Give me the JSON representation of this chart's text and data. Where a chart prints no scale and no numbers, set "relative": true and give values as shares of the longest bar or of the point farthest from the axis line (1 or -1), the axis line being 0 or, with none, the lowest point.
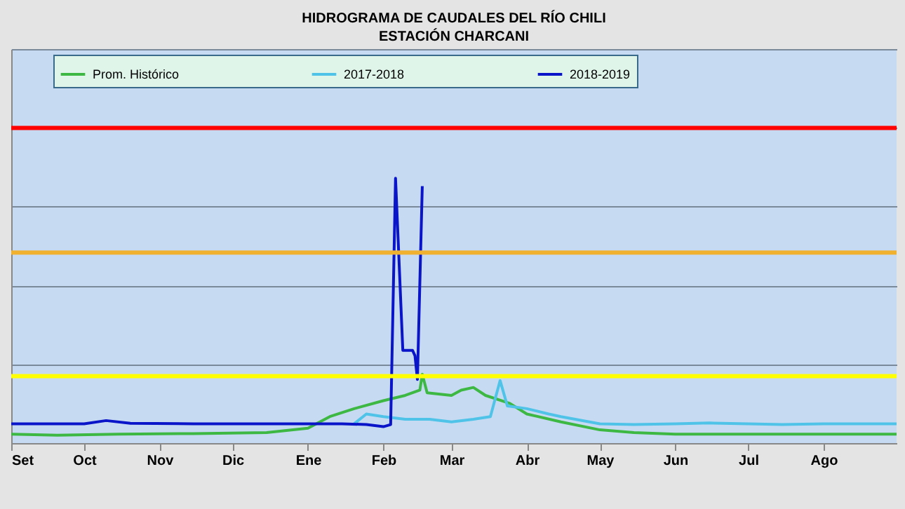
{
  "chart_data": {
    "type": "line",
    "title": "HIDROGRAMA DE CAUDALES DEL RÍO CHILI",
    "subtitle": "ESTACIÓN CHARCANI",
    "relative": true,
    "grid": "y",
    "legend": "top",
    "xlim": [
      "2018-09-01",
      "2019-08-31"
    ],
    "xticks": [
      {
        "value": "2018-09-01",
        "label": "Set"
      },
      {
        "value": "2018-10-01",
        "label": "Oct"
      },
      {
        "value": "2018-11-01",
        "label": "Nov"
      },
      {
        "value": "2018-12-01",
        "label": "Dic"
      },
      {
        "value": "2019-01-01",
        "label": "Ene"
      },
      {
        "value": "2019-02-01",
        "label": "Feb"
      },
      {
        "value": "2019-03-01",
        "label": "Mar"
      },
      {
        "value": "2019-04-01",
        "label": "Abr"
      },
      {
        "value": "2019-05-01",
        "label": "May"
      },
      {
        "value": "2019-06-01",
        "label": "Jun"
      },
      {
        "value": "2019-07-01",
        "label": "Jul"
      },
      {
        "value": "2019-08-01",
        "label": "Ago"
      }
    ],
    "series": [
      {
        "name": "Prom. Histórico",
        "color": "#3cb843",
        "x": [
          "2018-09-01",
          "2018-09-20",
          "2018-10-15",
          "2018-11-15",
          "2018-12-15",
          "2019-01-01",
          "2019-01-10",
          "2019-01-20",
          "2019-02-01",
          "2019-02-10",
          "2019-02-16",
          "2019-02-17",
          "2019-02-19",
          "2019-03-01",
          "2019-03-05",
          "2019-03-10",
          "2019-03-15",
          "2019-03-25",
          "2019-04-01",
          "2019-04-15",
          "2019-05-01",
          "2019-05-15",
          "2019-06-01",
          "2019-07-01",
          "2019-08-01",
          "2019-08-31"
        ],
        "values": [
          0.034,
          0.03,
          0.034,
          0.036,
          0.04,
          0.056,
          0.1,
          0.13,
          0.16,
          0.18,
          0.2,
          0.26,
          0.19,
          0.18,
          0.2,
          0.21,
          0.18,
          0.15,
          0.11,
          0.08,
          0.05,
          0.04,
          0.034,
          0.034,
          0.034,
          0.034
        ]
      },
      {
        "name": "2017-2018",
        "color": "#4fc3e8",
        "x": [
          "2019-01-20",
          "2019-01-25",
          "2019-02-01",
          "2019-02-10",
          "2019-02-20",
          "2019-03-01",
          "2019-03-10",
          "2019-03-17",
          "2019-03-21",
          "2019-03-24",
          "2019-04-01",
          "2019-04-10",
          "2019-04-15",
          "2019-05-01",
          "2019-05-15",
          "2019-06-01",
          "2019-06-15",
          "2019-07-01",
          "2019-07-15",
          "2019-08-01",
          "2019-08-31"
        ],
        "values": [
          0.073,
          0.11,
          0.1,
          0.09,
          0.09,
          0.08,
          0.09,
          0.1,
          0.236,
          0.14,
          0.13,
          0.11,
          0.1,
          0.073,
          0.07,
          0.073,
          0.076,
          0.073,
          0.07,
          0.073,
          0.073
        ]
      },
      {
        "name": "2018-2019",
        "color": "#0a14c8",
        "x": [
          "2018-09-01",
          "2018-10-01",
          "2018-10-10",
          "2018-10-20",
          "2018-11-15",
          "2018-12-15",
          "2019-01-15",
          "2019-01-25",
          "2019-02-01",
          "2019-02-04",
          "2019-02-06",
          "2019-02-09",
          "2019-02-13",
          "2019-02-14",
          "2019-02-15",
          "2019-02-17"
        ],
        "values": [
          0.073,
          0.073,
          0.085,
          0.075,
          0.073,
          0.073,
          0.073,
          0.07,
          0.062,
          0.07,
          1.0,
          0.35,
          0.35,
          0.33,
          0.24,
          0.97
        ]
      }
    ],
    "ref_lines": [
      {
        "axis": "y",
        "value": 1.19,
        "color": "#ff0000"
      },
      {
        "axis": "y",
        "value": 0.719,
        "color": "#f0b030"
      },
      {
        "axis": "y",
        "value": 0.253,
        "color": "#ffff00"
      }
    ]
  }
}
